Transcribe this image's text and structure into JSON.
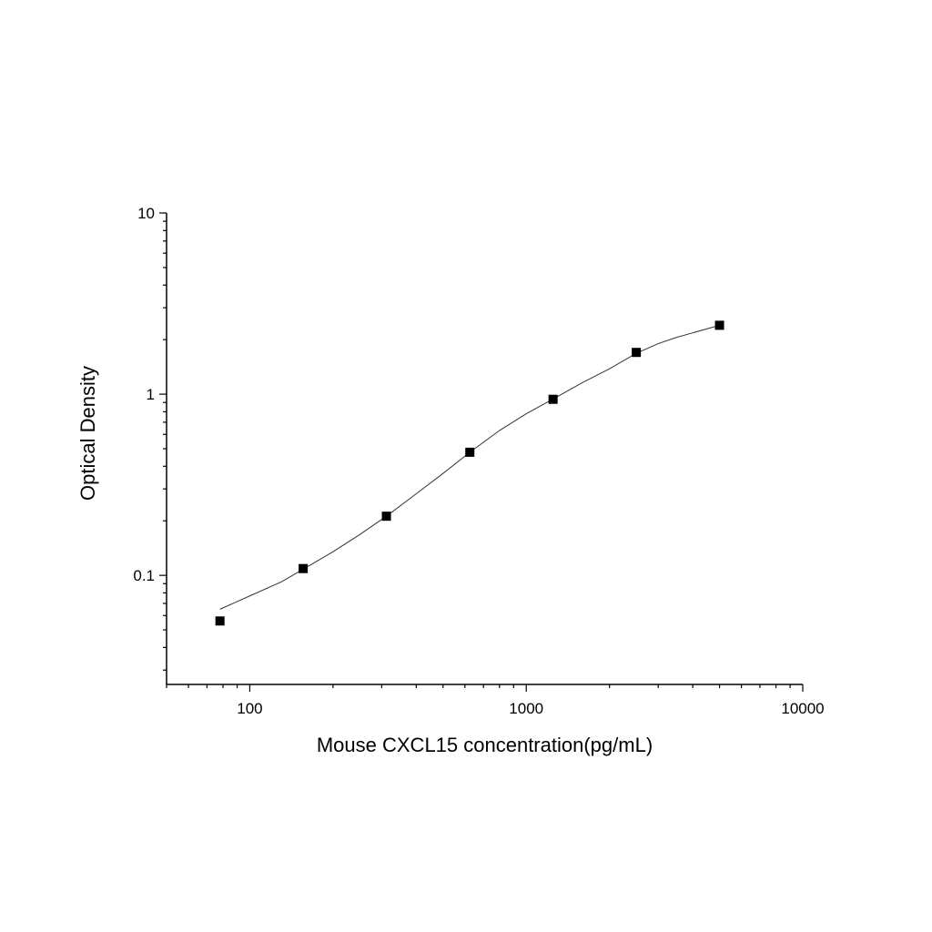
{
  "chart_data": {
    "type": "scatter",
    "title": "",
    "xlabel": "Mouse CXCL15 concentration(pg/mL)",
    "ylabel": "Optical Density",
    "x_scale": "log",
    "y_scale": "log",
    "xlim": [
      50,
      10000
    ],
    "ylim": [
      0.025,
      10
    ],
    "x_tick_labels": [
      {
        "value": 100,
        "label": "100"
      },
      {
        "value": 1000,
        "label": "1000"
      },
      {
        "value": 10000,
        "label": "10000"
      }
    ],
    "y_tick_labels": [
      {
        "value": 0.1,
        "label": "0.1"
      },
      {
        "value": 1,
        "label": "1"
      },
      {
        "value": 10,
        "label": "10"
      }
    ],
    "grid": false,
    "legend": "none",
    "series": [
      {
        "marker": "square",
        "color": "#000000",
        "x": [
          78,
          156,
          312,
          625,
          1250,
          2500,
          5000
        ],
        "y": [
          0.056,
          0.109,
          0.212,
          0.478,
          0.937,
          1.7,
          2.4
        ]
      }
    ],
    "fit_curve": {
      "color": "#333333",
      "x": [
        78,
        100,
        130,
        156,
        200,
        250,
        312,
        400,
        500,
        625,
        800,
        1000,
        1250,
        1600,
        2000,
        2500,
        3000,
        3500,
        4000,
        5000
      ],
      "y": [
        0.065,
        0.077,
        0.092,
        0.108,
        0.135,
        0.168,
        0.212,
        0.282,
        0.365,
        0.478,
        0.63,
        0.78,
        0.94,
        1.16,
        1.38,
        1.68,
        1.9,
        2.06,
        2.18,
        2.4
      ]
    }
  }
}
